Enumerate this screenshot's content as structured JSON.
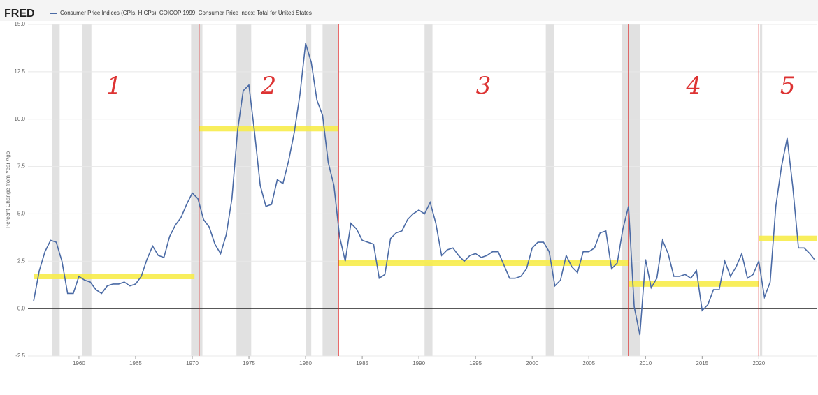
{
  "chart_data": {
    "type": "line",
    "brand": "FRED",
    "legend_label": "Consumer Price Indices (CPIs, HICPs), COICOP 1999: Consumer Price Index: Total for United States",
    "y_label": "Percent Change from Year Ago",
    "x": [
      1956.0,
      1956.5,
      1957.0,
      1957.5,
      1958.0,
      1958.5,
      1959.0,
      1959.5,
      1960.0,
      1960.5,
      1961.0,
      1961.5,
      1962.0,
      1962.5,
      1963.0,
      1963.5,
      1964.0,
      1964.5,
      1965.0,
      1965.5,
      1966.0,
      1966.5,
      1967.0,
      1967.5,
      1968.0,
      1968.5,
      1969.0,
      1969.5,
      1970.0,
      1970.5,
      1971.0,
      1971.5,
      1972.0,
      1972.5,
      1973.0,
      1973.5,
      1974.0,
      1974.5,
      1975.0,
      1975.5,
      1976.0,
      1976.5,
      1977.0,
      1977.5,
      1978.0,
      1978.5,
      1979.0,
      1979.5,
      1980.0,
      1980.5,
      1981.0,
      1981.5,
      1982.0,
      1982.5,
      1983.0,
      1983.5,
      1984.0,
      1984.5,
      1985.0,
      1985.5,
      1986.0,
      1986.5,
      1987.0,
      1987.5,
      1988.0,
      1988.5,
      1989.0,
      1989.5,
      1990.0,
      1990.5,
      1991.0,
      1991.5,
      1992.0,
      1992.5,
      1993.0,
      1993.5,
      1994.0,
      1994.5,
      1995.0,
      1995.5,
      1996.0,
      1996.5,
      1997.0,
      1997.5,
      1998.0,
      1998.5,
      1999.0,
      1999.5,
      2000.0,
      2000.5,
      2001.0,
      2001.5,
      2002.0,
      2002.5,
      2003.0,
      2003.5,
      2004.0,
      2004.5,
      2005.0,
      2005.5,
      2006.0,
      2006.5,
      2007.0,
      2007.5,
      2008.0,
      2008.5,
      2009.0,
      2009.5,
      2010.0,
      2010.5,
      2011.0,
      2011.5,
      2012.0,
      2012.5,
      2013.0,
      2013.5,
      2014.0,
      2014.5,
      2015.0,
      2015.5,
      2016.0,
      2016.5,
      2017.0,
      2017.5,
      2018.0,
      2018.5,
      2019.0,
      2019.5,
      2020.0,
      2020.5,
      2021.0,
      2021.5,
      2022.0,
      2022.5,
      2023.0,
      2023.5,
      2024.0,
      2024.5,
      2024.9
    ],
    "series": [
      {
        "name": "CPI",
        "color": "#4a6aa5",
        "values": [
          0.4,
          2.0,
          3.0,
          3.6,
          3.5,
          2.5,
          0.8,
          0.8,
          1.7,
          1.5,
          1.4,
          1.0,
          0.8,
          1.2,
          1.3,
          1.3,
          1.4,
          1.2,
          1.3,
          1.7,
          2.6,
          3.3,
          2.8,
          2.7,
          3.8,
          4.4,
          4.8,
          5.5,
          6.1,
          5.8,
          4.7,
          4.3,
          3.4,
          2.9,
          3.9,
          5.8,
          9.4,
          11.5,
          11.8,
          9.3,
          6.5,
          5.4,
          5.5,
          6.8,
          6.6,
          7.8,
          9.3,
          11.3,
          14.0,
          13.0,
          11.0,
          10.2,
          7.7,
          6.5,
          3.8,
          2.5,
          4.5,
          4.2,
          3.6,
          3.5,
          3.4,
          1.6,
          1.8,
          3.7,
          4.0,
          4.1,
          4.7,
          5.0,
          5.2,
          5.0,
          5.6,
          4.5,
          2.8,
          3.1,
          3.2,
          2.8,
          2.5,
          2.8,
          2.9,
          2.7,
          2.8,
          3.0,
          3.0,
          2.3,
          1.6,
          1.6,
          1.7,
          2.1,
          3.2,
          3.5,
          3.5,
          3.0,
          1.2,
          1.5,
          2.8,
          2.2,
          1.9,
          3.0,
          3.0,
          3.2,
          4.0,
          4.1,
          2.1,
          2.4,
          4.2,
          5.4,
          0.1,
          -1.4,
          2.6,
          1.1,
          1.6,
          3.6,
          2.9,
          1.7,
          1.7,
          1.8,
          1.6,
          2.0,
          -0.1,
          0.2,
          1.0,
          1.0,
          2.5,
          1.7,
          2.2,
          2.9,
          1.6,
          1.8,
          2.5,
          0.6,
          1.4,
          5.4,
          7.5,
          9.0,
          6.4,
          3.2,
          3.2,
          2.9,
          2.6
        ]
      }
    ],
    "recessions": [
      [
        1957.6,
        1958.3
      ],
      [
        1960.3,
        1961.1
      ],
      [
        1969.9,
        1970.9
      ],
      [
        1973.9,
        1975.2
      ],
      [
        1980.0,
        1980.5
      ],
      [
        1981.5,
        1982.9
      ],
      [
        1990.5,
        1991.2
      ],
      [
        2001.2,
        2001.9
      ],
      [
        2007.9,
        2009.5
      ],
      [
        2020.1,
        2020.3
      ]
    ],
    "periods": [
      {
        "label": "1",
        "start": 1956.0,
        "end": 1970.2,
        "level": 1.7
      },
      {
        "label": "2",
        "start": 1970.6,
        "end": 1982.9,
        "level": 9.5
      },
      {
        "label": "3",
        "start": 1982.9,
        "end": 2008.5,
        "level": 2.4
      },
      {
        "label": "4",
        "start": 2008.5,
        "end": 2020.0,
        "level": 1.3
      },
      {
        "label": "5",
        "start": 2020.0,
        "end": 2025.1,
        "level": 3.7
      }
    ],
    "xlim": [
      1955.5,
      2025.1
    ],
    "ylim": [
      -2.5,
      15
    ],
    "xticks": [
      1960,
      1965,
      1970,
      1975,
      1980,
      1985,
      1990,
      1995,
      2000,
      2005,
      2010,
      2015,
      2020
    ],
    "yticks": [
      -2.5,
      {
        "value": 0,
        "label": "0.0"
      },
      2.5,
      {
        "value": 5,
        "label": "5.0"
      },
      7.5,
      {
        "value": 10,
        "label": "10.0"
      },
      12.5,
      {
        "value": 15,
        "label": "15.0"
      }
    ],
    "grid": true
  }
}
